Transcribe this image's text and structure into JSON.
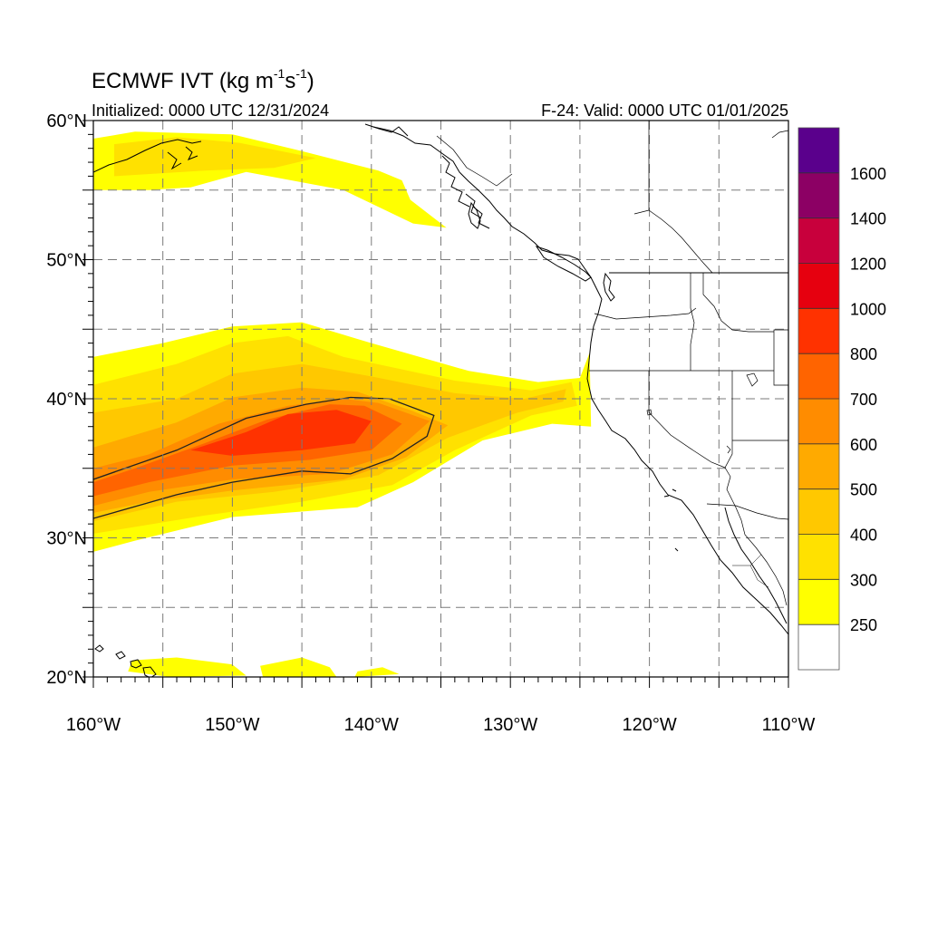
{
  "title": {
    "prefix": "ECMWF IVT (kg m",
    "exp1": "-1",
    "mid": "s",
    "exp2": "-1",
    "suffix": ")"
  },
  "subtitle_left": "Initialized: 0000 UTC 12/31/2024",
  "subtitle_right": "F-24: Valid: 0000 UTC 01/01/2025",
  "map": {
    "lon_range": [
      -160,
      -110
    ],
    "lat_range": [
      20,
      60
    ],
    "grid_lon_step": 5,
    "grid_lat_step": 5,
    "grid": "dashed",
    "lon_ticks": [
      {
        "value": -160,
        "label": "160°W"
      },
      {
        "value": -150,
        "label": "150°W"
      },
      {
        "value": -140,
        "label": "140°W"
      },
      {
        "value": -130,
        "label": "130°W"
      },
      {
        "value": -120,
        "label": "120°W"
      },
      {
        "value": -110,
        "label": "110°W"
      }
    ],
    "lat_ticks": [
      {
        "value": 60,
        "label": "60°N"
      },
      {
        "value": 50,
        "label": "50°N"
      },
      {
        "value": 40,
        "label": "40°N"
      },
      {
        "value": 30,
        "label": "30°N"
      },
      {
        "value": 20,
        "label": "20°N"
      }
    ]
  },
  "colorbar": {
    "levels": [
      250,
      300,
      400,
      500,
      600,
      700,
      800,
      1000,
      1200,
      1400,
      1600
    ],
    "labels": [
      "250",
      "300",
      "400",
      "500",
      "600",
      "700",
      "800",
      "1000",
      "1200",
      "1400",
      "1600"
    ],
    "colors": [
      "#ffffff",
      "#ffff00",
      "#ffe100",
      "#ffc800",
      "#ffaa00",
      "#ff8c00",
      "#ff6400",
      "#ff3200",
      "#e6000f",
      "#c8003c",
      "#8c0064",
      "#5a008c"
    ]
  },
  "fields": {
    "ar_band": [
      {
        "level": 250,
        "points": [
          [
            -160,
            43
          ],
          [
            -155,
            44
          ],
          [
            -150,
            45.2
          ],
          [
            -145,
            45.5
          ],
          [
            -140,
            44
          ],
          [
            -133,
            42
          ],
          [
            -128,
            41.2
          ],
          [
            -125,
            41.5
          ],
          [
            -124.3,
            43.3
          ],
          [
            -124.2,
            38
          ],
          [
            -127,
            38.2
          ],
          [
            -132,
            37
          ],
          [
            -137,
            34
          ],
          [
            -141,
            32.2
          ],
          [
            -150,
            31.5
          ],
          [
            -157,
            29.8
          ],
          [
            -160,
            29
          ]
        ]
      },
      {
        "level": 300,
        "points": [
          [
            -160,
            41
          ],
          [
            -154,
            42.5
          ],
          [
            -150,
            44
          ],
          [
            -146,
            44.5
          ],
          [
            -142,
            43
          ],
          [
            -134,
            41.3
          ],
          [
            -128.5,
            40.6
          ],
          [
            -125.6,
            41.2
          ],
          [
            -125.2,
            39.5
          ],
          [
            -128.5,
            38.8
          ],
          [
            -134,
            36.3
          ],
          [
            -138.5,
            33.8
          ],
          [
            -145,
            32.6
          ],
          [
            -152,
            31.6
          ],
          [
            -160,
            30.3
          ]
        ]
      },
      {
        "level": 400,
        "points": [
          [
            -160,
            39
          ],
          [
            -154,
            40
          ],
          [
            -150,
            41.8
          ],
          [
            -145,
            42.5
          ],
          [
            -140,
            41.6
          ],
          [
            -134,
            40.4
          ],
          [
            -129,
            40
          ],
          [
            -126,
            40.7
          ],
          [
            -126.2,
            39.8
          ],
          [
            -129.5,
            39
          ],
          [
            -134.5,
            37.2
          ],
          [
            -139.5,
            34.5
          ],
          [
            -147,
            33.3
          ],
          [
            -154,
            32.6
          ],
          [
            -160,
            31.2
          ]
        ]
      },
      {
        "level": 500,
        "points": [
          [
            -160,
            36.5
          ],
          [
            -154,
            38.3
          ],
          [
            -150,
            40.1
          ],
          [
            -145,
            40.8
          ],
          [
            -141,
            40.5
          ],
          [
            -137,
            39.1
          ],
          [
            -134.5,
            38.1
          ],
          [
            -137.5,
            35.8
          ],
          [
            -142,
            34.2
          ],
          [
            -150,
            33.4
          ],
          [
            -156,
            32.6
          ],
          [
            -160,
            31.8
          ]
        ]
      },
      {
        "level": 600,
        "points": [
          [
            -160,
            35
          ],
          [
            -156,
            36
          ],
          [
            -151,
            38.2
          ],
          [
            -146,
            39.5
          ],
          [
            -142,
            40
          ],
          [
            -139.5,
            39.7
          ],
          [
            -135.8,
            38.4
          ],
          [
            -138.5,
            36
          ],
          [
            -143,
            34.6
          ],
          [
            -150,
            34.2
          ],
          [
            -156,
            33.3
          ],
          [
            -160,
            32.3
          ]
        ]
      },
      {
        "level": 700,
        "points": [
          [
            -160,
            34
          ],
          [
            -157,
            35
          ],
          [
            -152,
            36.8
          ],
          [
            -147.5,
            38.5
          ],
          [
            -143,
            39.6
          ],
          [
            -140.5,
            39.5
          ],
          [
            -137.8,
            38.2
          ],
          [
            -140,
            36.3
          ],
          [
            -144.5,
            35.6
          ],
          [
            -150,
            35.2
          ],
          [
            -156,
            34
          ],
          [
            -160,
            33
          ]
        ]
      },
      {
        "level": 800,
        "points": [
          [
            -153,
            36.3
          ],
          [
            -149,
            37.6
          ],
          [
            -146,
            38.9
          ],
          [
            -142.5,
            39.2
          ],
          [
            -140,
            38.4
          ],
          [
            -141.2,
            36.8
          ],
          [
            -145,
            36.3
          ],
          [
            -150,
            35.9
          ]
        ]
      }
    ],
    "other_patches": [
      {
        "level": 250,
        "points": [
          [
            -160,
            58.7
          ],
          [
            -157,
            59.2
          ],
          [
            -150,
            59
          ],
          [
            -145,
            57.8
          ],
          [
            -139.5,
            56.4
          ],
          [
            -137.8,
            55.7
          ],
          [
            -137.2,
            54.3
          ],
          [
            -134.6,
            52.3
          ],
          [
            -137,
            52.6
          ],
          [
            -142,
            55
          ],
          [
            -149,
            56.3
          ],
          [
            -153,
            55.2
          ],
          [
            -156,
            55
          ],
          [
            -160,
            55
          ]
        ]
      },
      {
        "level": 300,
        "points": [
          [
            -158.5,
            58.3
          ],
          [
            -154,
            58.8
          ],
          [
            -149.5,
            58.4
          ],
          [
            -144,
            57.3
          ],
          [
            -147,
            56.6
          ],
          [
            -152,
            56.4
          ],
          [
            -158.5,
            56
          ]
        ]
      },
      {
        "level": 250,
        "points": [
          [
            -157.2,
            21.2
          ],
          [
            -154,
            21.4
          ],
          [
            -150,
            20.9
          ],
          [
            -149,
            20.1
          ],
          [
            -154.5,
            20
          ],
          [
            -157.5,
            20.4
          ]
        ]
      },
      {
        "level": 250,
        "points": [
          [
            -148,
            20.8
          ],
          [
            -145,
            21.4
          ],
          [
            -143,
            20.7
          ],
          [
            -142.5,
            20
          ],
          [
            -147.8,
            20
          ]
        ]
      },
      {
        "level": 250,
        "points": [
          [
            -141,
            20.4
          ],
          [
            -139.2,
            20.7
          ],
          [
            -138,
            20.2
          ],
          [
            -141.2,
            20
          ]
        ]
      }
    ],
    "contours": [
      {
        "level": 500,
        "points": [
          [
            -160,
            34.2
          ],
          [
            -154,
            36.3
          ],
          [
            -149,
            38.6
          ],
          [
            -144.7,
            39.6
          ],
          [
            -141.5,
            40.1
          ],
          [
            -138.7,
            40
          ],
          [
            -135.5,
            38.8
          ],
          [
            -136,
            37.3
          ],
          [
            -138.5,
            35.7
          ],
          [
            -141.5,
            34.6
          ],
          [
            -145,
            34.8
          ],
          [
            -150,
            34
          ],
          [
            -154,
            33.1
          ],
          [
            -160,
            31.4
          ]
        ]
      }
    ]
  }
}
